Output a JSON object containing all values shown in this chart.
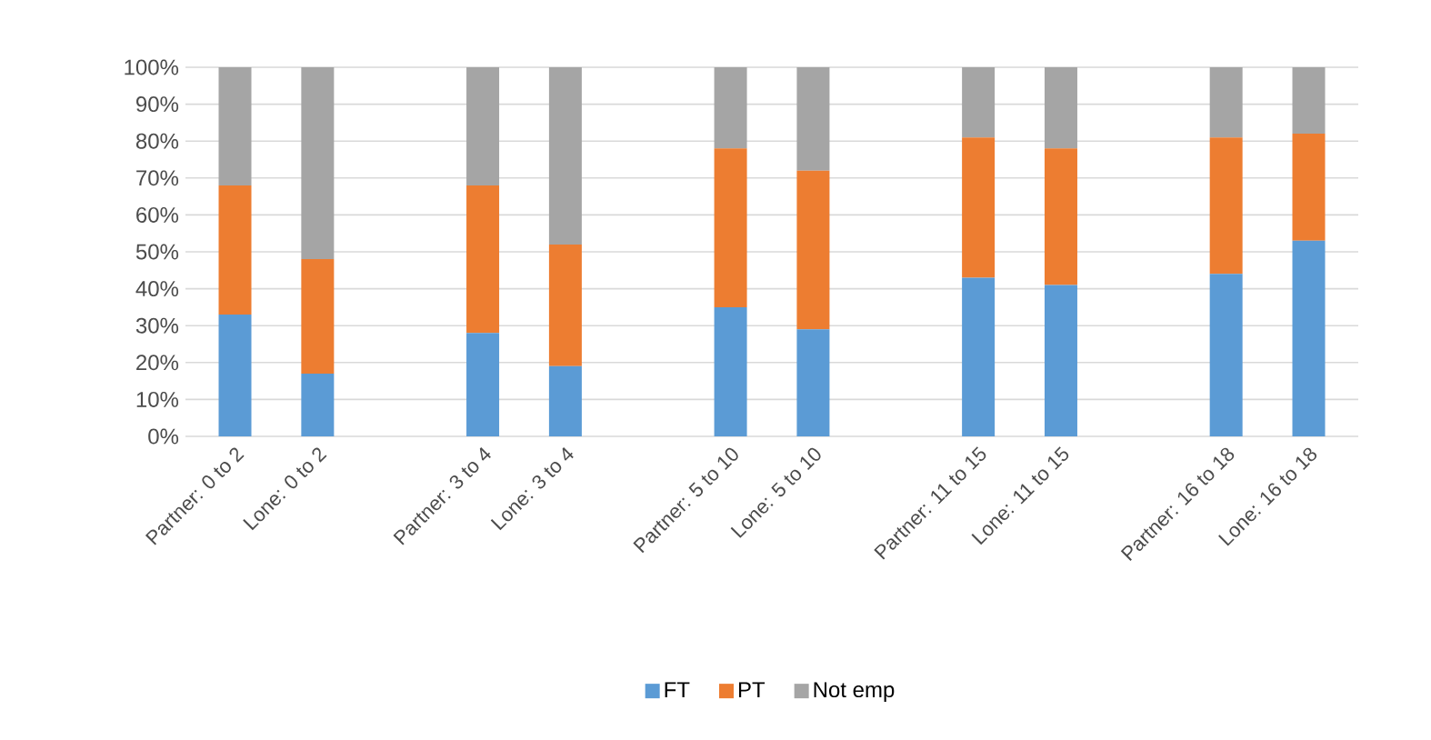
{
  "chart_data": {
    "type": "bar",
    "stacked": true,
    "categories": [
      "Partner: 0 to 2",
      "Lone: 0 to 2",
      null,
      "Partner: 3 to 4",
      "Lone: 3 to 4",
      null,
      "Partner: 5 to 10",
      "Lone: 5 to 10",
      null,
      "Partner: 11 to 15",
      "Lone: 11 to 15",
      null,
      "Partner: 16 to 18",
      "Lone: 16 to 18"
    ],
    "series": [
      {
        "name": "FT",
        "color": "#5b9bd5",
        "values": [
          33,
          17,
          null,
          28,
          19,
          null,
          35,
          29,
          null,
          43,
          41,
          null,
          44,
          53
        ]
      },
      {
        "name": "PT",
        "color": "#ed7d31",
        "values": [
          35,
          31,
          null,
          40,
          33,
          null,
          43,
          43,
          null,
          38,
          37,
          null,
          37,
          29
        ]
      },
      {
        "name": "Not emp",
        "color": "#a5a5a5",
        "values": [
          32,
          52,
          null,
          32,
          48,
          null,
          22,
          28,
          null,
          19,
          22,
          null,
          19,
          18
        ]
      }
    ],
    "ylim": [
      0,
      100
    ],
    "yticks": [
      {
        "value": 0,
        "label": "0%"
      },
      {
        "value": 10,
        "label": "10%"
      },
      {
        "value": 20,
        "label": "20%"
      },
      {
        "value": 30,
        "label": "30%"
      },
      {
        "value": 40,
        "label": "40%"
      },
      {
        "value": 50,
        "label": "50%"
      },
      {
        "value": 60,
        "label": "60%"
      },
      {
        "value": 70,
        "label": "70%"
      },
      {
        "value": 80,
        "label": "80%"
      },
      {
        "value": 90,
        "label": "90%"
      },
      {
        "value": 100,
        "label": "100%"
      }
    ],
    "grid": "y",
    "legend": "bottom"
  }
}
